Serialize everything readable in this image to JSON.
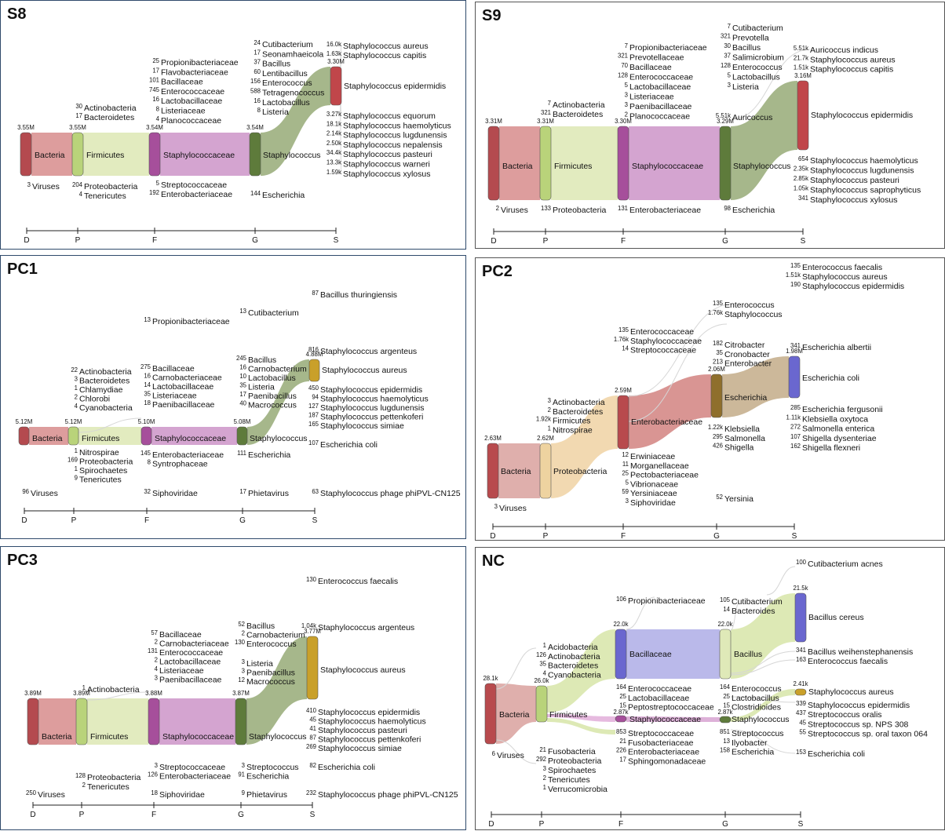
{
  "chart_data": [
    {
      "type": "sankey",
      "title": "S8",
      "levels": [
        "D",
        "P",
        "F",
        "G",
        "S"
      ],
      "nodes": [
        {
          "name": "Bacteria",
          "value": "3.55M",
          "level": "D"
        },
        {
          "name": "Firmicutes",
          "value": "3.55M",
          "level": "P"
        },
        {
          "name": "Staphylococcaceae",
          "value": "3.54M",
          "level": "F"
        },
        {
          "name": "Staphylococcus",
          "value": "3.54M",
          "level": "G"
        },
        {
          "name": "Staphylococcus epidermidis",
          "value": "3.30M",
          "level": "S"
        }
      ],
      "minor_labels": [
        {
          "v": "3",
          "n": "Viruses"
        },
        {
          "v": "30",
          "n": "Actinobacteria"
        },
        {
          "v": "17",
          "n": "Bacteroidetes"
        },
        {
          "v": "204",
          "n": "Proteobacteria"
        },
        {
          "v": "4",
          "n": "Tenericutes"
        },
        {
          "v": "25",
          "n": "Propionibacteriaceae"
        },
        {
          "v": "17",
          "n": "Flavobacteriaceae"
        },
        {
          "v": "101",
          "n": "Bacillaceae"
        },
        {
          "v": "745",
          "n": "Enterococcaceae"
        },
        {
          "v": "16",
          "n": "Lactobacillaceae"
        },
        {
          "v": "8",
          "n": "Listeriaceae"
        },
        {
          "v": "4",
          "n": "Planococcaceae"
        },
        {
          "v": "5",
          "n": "Streptococcaceae"
        },
        {
          "v": "192",
          "n": "Enterobacteriaceae"
        },
        {
          "v": "24",
          "n": "Cutibacterium"
        },
        {
          "v": "17",
          "n": "Seonamhaeicola"
        },
        {
          "v": "37",
          "n": "Bacillus"
        },
        {
          "v": "60",
          "n": "Lentibacillus"
        },
        {
          "v": "156",
          "n": "Enterococcus"
        },
        {
          "v": "588",
          "n": "Tetragenococcus"
        },
        {
          "v": "16",
          "n": "Lactobacillus"
        },
        {
          "v": "8",
          "n": "Listeria"
        },
        {
          "v": "144",
          "n": "Escherichia"
        },
        {
          "v": "16.0k",
          "n": "Staphylococcus aureus"
        },
        {
          "v": "1.63k",
          "n": "Staphylococcus capitis"
        },
        {
          "v": "3.27k",
          "n": "Staphylococcus equorum"
        },
        {
          "v": "18.1k",
          "n": "Staphylococcus haemolyticus"
        },
        {
          "v": "2.14k",
          "n": "Staphylococcus lugdunensis"
        },
        {
          "v": "2.50k",
          "n": "Staphylococcus nepalensis"
        },
        {
          "v": "34.4k",
          "n": "Staphylococcus pasteuri"
        },
        {
          "v": "13.3k",
          "n": "Staphylococcus warneri"
        },
        {
          "v": "1.59k",
          "n": "Staphylococcus xylosus"
        }
      ]
    },
    {
      "type": "sankey",
      "title": "S9",
      "levels": [
        "D",
        "P",
        "F",
        "G",
        "S"
      ],
      "nodes": [
        {
          "name": "Bacteria",
          "value": "3.31M",
          "level": "D"
        },
        {
          "name": "Firmicutes",
          "value": "3.31M",
          "level": "P"
        },
        {
          "name": "Staphylococcaceae",
          "value": "3.30M",
          "level": "F"
        },
        {
          "name": "Staphylococcus",
          "value": "3.29M",
          "level": "G"
        },
        {
          "name": "Staphylococcus epidermidis",
          "value": "3.16M",
          "level": "S"
        }
      ],
      "minor_labels": [
        {
          "v": "2",
          "n": "Viruses"
        },
        {
          "v": "7",
          "n": "Actinobacteria"
        },
        {
          "v": "321",
          "n": "Bacteroidetes"
        },
        {
          "v": "133",
          "n": "Proteobacteria"
        },
        {
          "v": "7",
          "n": "Propionibacteriaceae"
        },
        {
          "v": "321",
          "n": "Prevotellaceae"
        },
        {
          "v": "70",
          "n": "Bacillaceae"
        },
        {
          "v": "128",
          "n": "Enterococcaceae"
        },
        {
          "v": "5",
          "n": "Lactobacillaceae"
        },
        {
          "v": "3",
          "n": "Listeriaceae"
        },
        {
          "v": "3",
          "n": "Paenibacillaceae"
        },
        {
          "v": "2",
          "n": "Planococcaceae"
        },
        {
          "v": "131",
          "n": "Enterobacteriaceae"
        },
        {
          "v": "7",
          "n": "Cutibacterium"
        },
        {
          "v": "321",
          "n": "Prevotella"
        },
        {
          "v": "30",
          "n": "Bacillus"
        },
        {
          "v": "37",
          "n": "Salimicrobium"
        },
        {
          "v": "128",
          "n": "Enterococcus"
        },
        {
          "v": "5",
          "n": "Lactobacillus"
        },
        {
          "v": "3",
          "n": "Listeria"
        },
        {
          "v": "5.51k",
          "n": "Auricoccus"
        },
        {
          "v": "98",
          "n": "Escherichia"
        },
        {
          "v": "5.51k",
          "n": "Auricoccus indicus"
        },
        {
          "v": "21.7k",
          "n": "Staphylococcus aureus"
        },
        {
          "v": "1.51k",
          "n": "Staphylococcus capitis"
        },
        {
          "v": "654",
          "n": "Staphylococcus haemolyticus"
        },
        {
          "v": "2.35k",
          "n": "Staphylococcus lugdunensis"
        },
        {
          "v": "2.85k",
          "n": "Staphylococcus pasteuri"
        },
        {
          "v": "1.05k",
          "n": "Staphylococcus saprophyticus"
        },
        {
          "v": "341",
          "n": "Staphylococcus xylosus"
        }
      ]
    },
    {
      "type": "sankey",
      "title": "PC1",
      "levels": [
        "D",
        "P",
        "F",
        "G",
        "S"
      ],
      "nodes": [
        {
          "name": "Bacteria",
          "value": "5.12M",
          "level": "D"
        },
        {
          "name": "Firmicutes",
          "value": "5.12M",
          "level": "P"
        },
        {
          "name": "Staphylococcaceae",
          "value": "5.10M",
          "level": "F"
        },
        {
          "name": "Staphylococcus",
          "value": "5.08M",
          "level": "G"
        },
        {
          "name": "Staphylococcus aureus",
          "value": "4.88M",
          "level": "S"
        }
      ],
      "minor_labels": [
        {
          "v": "96",
          "n": "Viruses"
        },
        {
          "v": "22",
          "n": "Actinobacteria"
        },
        {
          "v": "3",
          "n": "Bacteroidetes"
        },
        {
          "v": "1",
          "n": "Chlamydiae"
        },
        {
          "v": "2",
          "n": "Chlorobi"
        },
        {
          "v": "4",
          "n": "Cyanobacteria"
        },
        {
          "v": "1",
          "n": "Nitrospirae"
        },
        {
          "v": "169",
          "n": "Proteobacteria"
        },
        {
          "v": "1",
          "n": "Spirochaetes"
        },
        {
          "v": "9",
          "n": "Tenericutes"
        },
        {
          "v": "13",
          "n": "Propionibacteriaceae"
        },
        {
          "v": "275",
          "n": "Bacillaceae"
        },
        {
          "v": "16",
          "n": "Carnobacteriaceae"
        },
        {
          "v": "14",
          "n": "Lactobacillaceae"
        },
        {
          "v": "35",
          "n": "Listeriaceae"
        },
        {
          "v": "18",
          "n": "Paenibacillaceae"
        },
        {
          "v": "145",
          "n": "Enterobacteriaceae"
        },
        {
          "v": "8",
          "n": "Syntrophaceae"
        },
        {
          "v": "32",
          "n": "Siphoviridae"
        },
        {
          "v": "13",
          "n": "Cutibacterium"
        },
        {
          "v": "245",
          "n": "Bacillus"
        },
        {
          "v": "16",
          "n": "Carnobacterium"
        },
        {
          "v": "10",
          "n": "Lactobacillus"
        },
        {
          "v": "35",
          "n": "Listeria"
        },
        {
          "v": "17",
          "n": "Paenibacillus"
        },
        {
          "v": "40",
          "n": "Macrococcus"
        },
        {
          "v": "111",
          "n": "Escherichia"
        },
        {
          "v": "17",
          "n": "Phietavirus"
        },
        {
          "v": "87",
          "n": "Bacillus thuringiensis"
        },
        {
          "v": "816",
          "n": "Staphylococcus argenteus"
        },
        {
          "v": "450",
          "n": "Staphylococcus epidermidis"
        },
        {
          "v": "94",
          "n": "Staphylococcus haemolyticus"
        },
        {
          "v": "127",
          "n": "Staphylococcus lugdunensis"
        },
        {
          "v": "187",
          "n": "Staphylococcus pettenkoferi"
        },
        {
          "v": "165",
          "n": "Staphylococcus simiae"
        },
        {
          "v": "107",
          "n": "Escherichia coli"
        },
        {
          "v": "63",
          "n": "Staphylococcus phage phiPVL-CN125"
        }
      ]
    },
    {
      "type": "sankey",
      "title": "PC2",
      "levels": [
        "D",
        "P",
        "F",
        "G",
        "S"
      ],
      "nodes": [
        {
          "name": "Bacteria",
          "value": "2.63M",
          "level": "D"
        },
        {
          "name": "Proteobacteria",
          "value": "2.62M",
          "level": "P"
        },
        {
          "name": "Enterobacteriaceae",
          "value": "2.59M",
          "level": "F"
        },
        {
          "name": "Escherichia",
          "value": "2.06M",
          "level": "G"
        },
        {
          "name": "Escherichia coli",
          "value": "1.98M",
          "level": "S"
        }
      ],
      "minor_labels": [
        {
          "v": "3",
          "n": "Viruses"
        },
        {
          "v": "3",
          "n": "Actinobacteria"
        },
        {
          "v": "2",
          "n": "Bacteroidetes"
        },
        {
          "v": "1.92k",
          "n": "Firmicutes"
        },
        {
          "v": "1",
          "n": "Nitrospirae"
        },
        {
          "v": "135",
          "n": "Enterococcaceae"
        },
        {
          "v": "1.76k",
          "n": "Staphylococcaceae"
        },
        {
          "v": "14",
          "n": "Streptococcaceae"
        },
        {
          "v": "12",
          "n": "Erwiniaceae"
        },
        {
          "v": "11",
          "n": "Morganellaceae"
        },
        {
          "v": "25",
          "n": "Pectobacteriaceae"
        },
        {
          "v": "5",
          "n": "Vibrionaceae"
        },
        {
          "v": "59",
          "n": "Yersiniaceae"
        },
        {
          "v": "3",
          "n": "Siphoviridae"
        },
        {
          "v": "135",
          "n": "Enterococcus"
        },
        {
          "v": "1.76k",
          "n": "Staphylococcus"
        },
        {
          "v": "182",
          "n": "Citrobacter"
        },
        {
          "v": "35",
          "n": "Cronobacter"
        },
        {
          "v": "213",
          "n": "Enterobacter"
        },
        {
          "v": "1.22k",
          "n": "Klebsiella"
        },
        {
          "v": "295",
          "n": "Salmonella"
        },
        {
          "v": "426",
          "n": "Shigella"
        },
        {
          "v": "52",
          "n": "Yersinia"
        },
        {
          "v": "135",
          "n": "Enterococcus faecalis"
        },
        {
          "v": "1.51k",
          "n": "Staphylococcus aureus"
        },
        {
          "v": "190",
          "n": "Staphylococcus epidermidis"
        },
        {
          "v": "341",
          "n": "Escherichia albertii"
        },
        {
          "v": "285",
          "n": "Escherichia fergusonii"
        },
        {
          "v": "1.11k",
          "n": "Klebsiella oxytoca"
        },
        {
          "v": "272",
          "n": "Salmonella enterica"
        },
        {
          "v": "107",
          "n": "Shigella dysenteriae"
        },
        {
          "v": "162",
          "n": "Shigella flexneri"
        }
      ]
    },
    {
      "type": "sankey",
      "title": "PC3",
      "levels": [
        "D",
        "P",
        "F",
        "G",
        "S"
      ],
      "nodes": [
        {
          "name": "Bacteria",
          "value": "3.89M",
          "level": "D"
        },
        {
          "name": "Firmicutes",
          "value": "3.89M",
          "level": "P"
        },
        {
          "name": "Staphylococcaceae",
          "value": "3.88M",
          "level": "F"
        },
        {
          "name": "Staphylococcus",
          "value": "3.87M",
          "level": "G"
        },
        {
          "name": "Staphylococcus aureus",
          "value": "3.77M",
          "level": "S"
        }
      ],
      "minor_labels": [
        {
          "v": "250",
          "n": "Viruses"
        },
        {
          "v": "1",
          "n": "Actinobacteria"
        },
        {
          "v": "128",
          "n": "Proteobacteria"
        },
        {
          "v": "2",
          "n": "Tenericutes"
        },
        {
          "v": "57",
          "n": "Bacillaceae"
        },
        {
          "v": "2",
          "n": "Carnobacteriaceae"
        },
        {
          "v": "131",
          "n": "Enterococcaceae"
        },
        {
          "v": "2",
          "n": "Lactobacillaceae"
        },
        {
          "v": "4",
          "n": "Listeriaceae"
        },
        {
          "v": "3",
          "n": "Paenibacillaceae"
        },
        {
          "v": "3",
          "n": "Streptococcaceae"
        },
        {
          "v": "126",
          "n": "Enterobacteriaceae"
        },
        {
          "v": "18",
          "n": "Siphoviridae"
        },
        {
          "v": "52",
          "n": "Bacillus"
        },
        {
          "v": "2",
          "n": "Carnobacterium"
        },
        {
          "v": "130",
          "n": "Enterococcus"
        },
        {
          "v": "3",
          "n": "Listeria"
        },
        {
          "v": "3",
          "n": "Paenibacillus"
        },
        {
          "v": "12",
          "n": "Macrococcus"
        },
        {
          "v": "3",
          "n": "Streptococcus"
        },
        {
          "v": "91",
          "n": "Escherichia"
        },
        {
          "v": "9",
          "n": "Phietavirus"
        },
        {
          "v": "130",
          "n": "Enterococcus faecalis"
        },
        {
          "v": "1.04k",
          "n": "Staphylococcus argenteus"
        },
        {
          "v": "410",
          "n": "Staphylococcus epidermidis"
        },
        {
          "v": "45",
          "n": "Staphylococcus haemolyticus"
        },
        {
          "v": "41",
          "n": "Staphylococcus pasteuri"
        },
        {
          "v": "87",
          "n": "Staphylococcus pettenkoferi"
        },
        {
          "v": "269",
          "n": "Staphylococcus simiae"
        },
        {
          "v": "82",
          "n": "Escherichia coli"
        },
        {
          "v": "232",
          "n": "Staphylococcus phage phiPVL-CN125"
        }
      ]
    },
    {
      "type": "sankey",
      "title": "NC",
      "levels": [
        "D",
        "P",
        "F",
        "G",
        "S"
      ],
      "nodes": [
        {
          "name": "Bacteria",
          "value": "28.1k",
          "level": "D"
        },
        {
          "name": "Firmicutes",
          "value": "26.0k",
          "level": "P"
        },
        {
          "name": "Bacillaceae",
          "value": "22.0k",
          "level": "F"
        },
        {
          "name": "Staphylococcaceae",
          "value": "2.87k",
          "level": "F"
        },
        {
          "name": "Bacillus",
          "value": "22.0k",
          "level": "G"
        },
        {
          "name": "Staphylococcus",
          "value": "2.87k",
          "level": "G"
        },
        {
          "name": "Bacillus cereus",
          "value": "21.5k",
          "level": "S"
        },
        {
          "name": "Staphylococcus aureus",
          "value": "2.41k",
          "level": "S"
        }
      ],
      "minor_labels": [
        {
          "v": "6",
          "n": "Viruses"
        },
        {
          "v": "1",
          "n": "Acidobacteria"
        },
        {
          "v": "126",
          "n": "Actinobacteria"
        },
        {
          "v": "35",
          "n": "Bacteroidetes"
        },
        {
          "v": "4",
          "n": "Cyanobacteria"
        },
        {
          "v": "21",
          "n": "Fusobacteria"
        },
        {
          "v": "292",
          "n": "Proteobacteria"
        },
        {
          "v": "3",
          "n": "Spirochaetes"
        },
        {
          "v": "2",
          "n": "Tenericutes"
        },
        {
          "v": "1",
          "n": "Verrucomicrobia"
        },
        {
          "v": "106",
          "n": "Propionibacteriaceae"
        },
        {
          "v": "164",
          "n": "Enterococcaceae"
        },
        {
          "v": "25",
          "n": "Lactobacillaceae"
        },
        {
          "v": "15",
          "n": "Peptostreptococcaceae"
        },
        {
          "v": "853",
          "n": "Streptococcaceae"
        },
        {
          "v": "21",
          "n": "Fusobacteriaceae"
        },
        {
          "v": "226",
          "n": "Enterobacteriaceae"
        },
        {
          "v": "17",
          "n": "Sphingomonadaceae"
        },
        {
          "v": "105",
          "n": "Cutibacterium"
        },
        {
          "v": "14",
          "n": "Bacteroides"
        },
        {
          "v": "164",
          "n": "Enterococcus"
        },
        {
          "v": "25",
          "n": "Lactobacillus"
        },
        {
          "v": "15",
          "n": "Clostridioides"
        },
        {
          "v": "851",
          "n": "Streptococcus"
        },
        {
          "v": "13",
          "n": "Ilyobacter"
        },
        {
          "v": "158",
          "n": "Escherichia"
        },
        {
          "v": "100",
          "n": "Cutibacterium acnes"
        },
        {
          "v": "341",
          "n": "Bacillus weihenstephanensis"
        },
        {
          "v": "163",
          "n": "Enterococcus faecalis"
        },
        {
          "v": "339",
          "n": "Staphylococcus epidermidis"
        },
        {
          "v": "437",
          "n": "Streptococcus oralis"
        },
        {
          "v": "45",
          "n": "Streptococcus sp. NPS 308"
        },
        {
          "v": "55",
          "n": "Streptococcus sp. oral taxon 064"
        },
        {
          "v": "153",
          "n": "Escherichia coli"
        }
      ]
    }
  ]
}
